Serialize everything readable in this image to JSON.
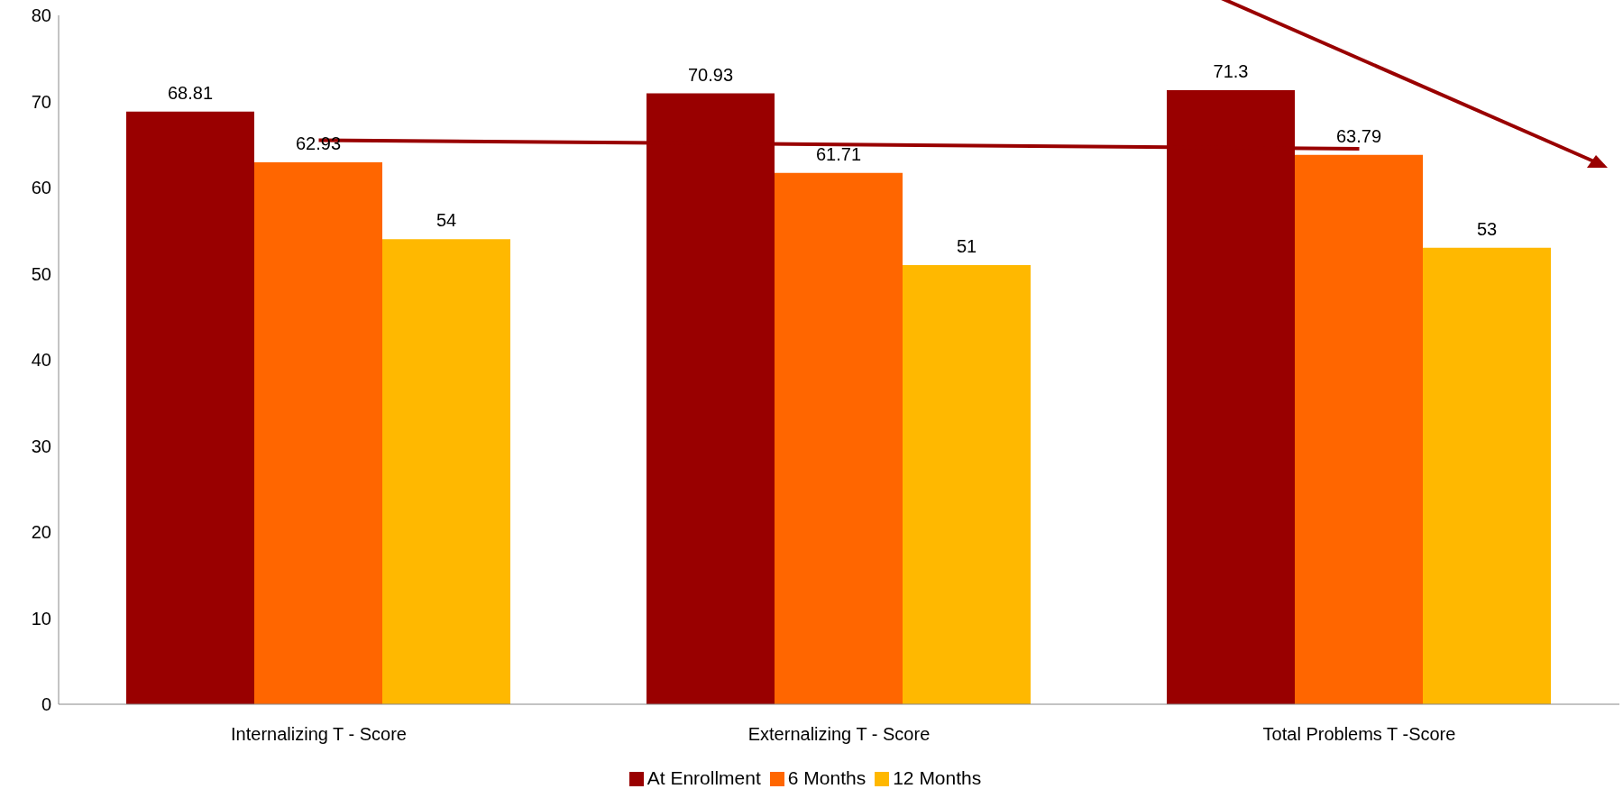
{
  "chart_data": {
    "type": "bar",
    "categories": [
      "Internalizing T - Score",
      "Externalizing T - Score",
      "Total Problems T -Score"
    ],
    "series": [
      {
        "name": "At Enrollment",
        "color": "#990000",
        "values": [
          68.81,
          70.93,
          71.3
        ],
        "value_labels": [
          "68.81",
          "70.93",
          "71.3"
        ]
      },
      {
        "name": "6 Months",
        "color": "#ff6600",
        "values": [
          62.93,
          61.71,
          63.79
        ],
        "value_labels": [
          "62.93",
          "61.71",
          "63.79"
        ]
      },
      {
        "name": "12 Months",
        "color": "#ffb800",
        "values": [
          54,
          51,
          53
        ],
        "value_labels": [
          "54",
          "51",
          "53"
        ]
      },
      {
        "type": "line",
        "color": "#990000",
        "values": [
          65.5,
          65.0,
          64.5
        ]
      }
    ],
    "ylim": [
      0,
      80
    ],
    "yticks": [
      0,
      10,
      20,
      30,
      40,
      50,
      60,
      70,
      80
    ],
    "grid": false,
    "legend": "bottom"
  }
}
